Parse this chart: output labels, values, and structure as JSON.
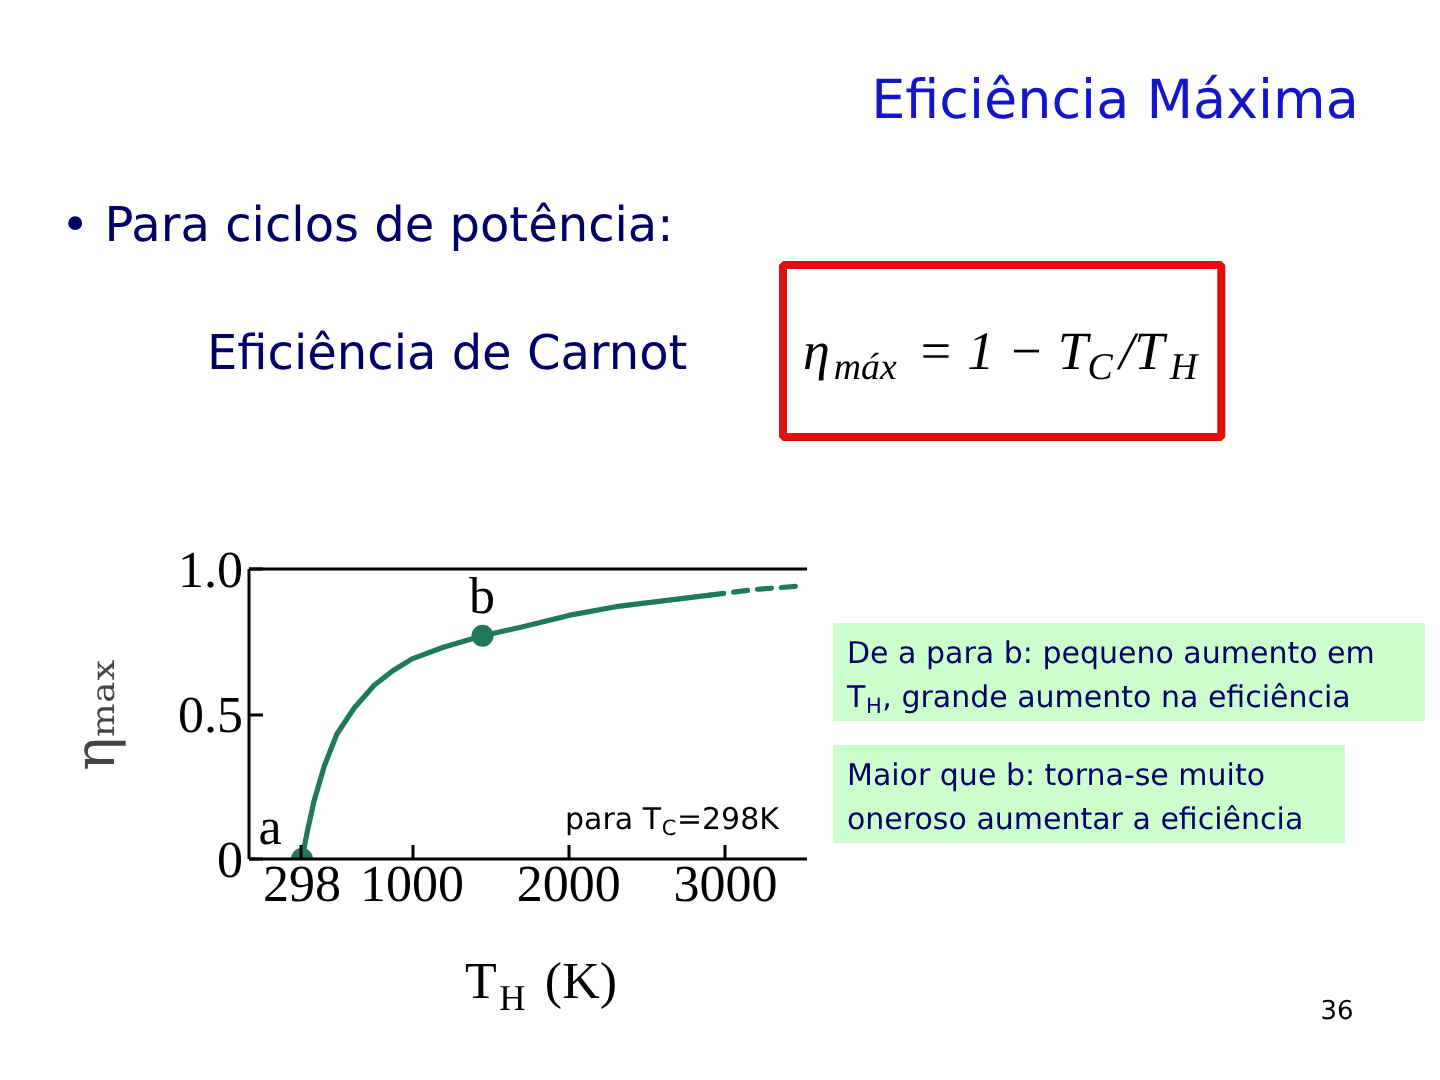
{
  "chart_data": {
    "type": "line",
    "title": "Eficiência Máxima",
    "subtitle": "• Para ciclos de potência:",
    "xlabel": "T$_{H}$ (K)",
    "ylabel": "ηₘₐₓ",
    "xlim": [
      -40,
      3520
    ],
    "ylim": [
      0,
      1
    ],
    "xticks": [
      298,
      1000,
      2000,
      3000
    ],
    "yticks": [
      0,
      0.5,
      {
        "value": 1,
        "label": "1.0"
      }
    ],
    "series": [
      {
        "color": "#1f7a5c",
        "line_style": "solid",
        "x": [
          298,
          330,
          375,
          440,
          520,
          630,
          760,
          880,
          1000,
          1200,
          1450,
          1700,
          2000,
          2300,
          2600,
          2900
        ],
        "values": [
          0,
          0.09,
          0.2,
          0.32,
          0.43,
          0.52,
          0.6,
          0.65,
          0.69,
          0.73,
          0.77,
          0.8,
          0.84,
          0.87,
          0.89,
          0.91
        ]
      },
      {
        "color": "#1f7a5c",
        "line_style": "dashed",
        "x": [
          2900,
          3200,
          3450
        ],
        "values": [
          0.91,
          0.93,
          0.94
        ]
      },
      {
        "type": "scatter",
        "color": "#1f7a5c",
        "marker": "circle",
        "x": [
          298,
          1450
        ],
        "values": [
          0,
          0.77
        ]
      }
    ],
    "annotations": [
      {
        "text": "a",
        "x": 298,
        "y": 0
      },
      {
        "text": "b",
        "x": 1450,
        "y": 0.77
      },
      "para T$_{C}$=298K",
      "Eficiência de Carnot",
      "η$_{máx}$ = 1 − T$_{C}$/T$_{H}$",
      "De a para b: pequeno aumento em T$_{H}$, grande aumento na eficiência",
      "Maior que b: torna-se muito oneroso aumentar a eficiência",
      "36"
    ]
  }
}
